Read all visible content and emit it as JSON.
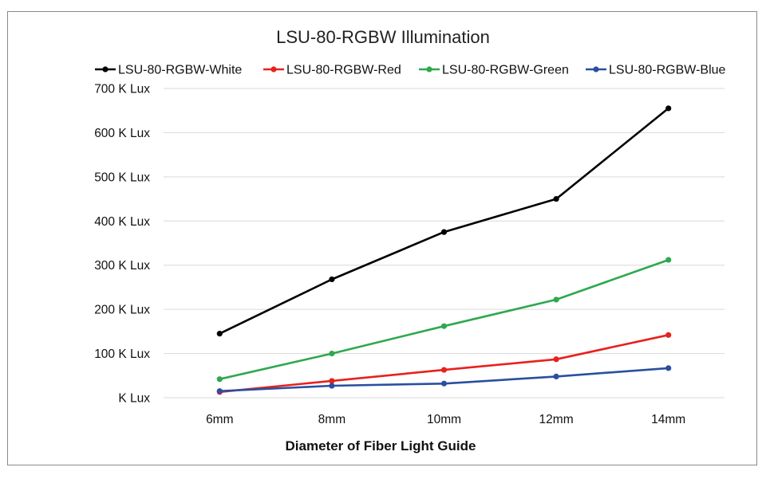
{
  "chart_data": {
    "type": "line",
    "title": "LSU-80-RGBW Illumination",
    "xlabel": "Diameter of Fiber Light Guide",
    "ylabel": "",
    "categories": [
      "6mm",
      "8mm",
      "10mm",
      "12mm",
      "14mm"
    ],
    "ylim": [
      0,
      700
    ],
    "yticks": [
      0,
      100,
      200,
      300,
      400,
      500,
      600,
      700
    ],
    "ytick_labels": [
      "K Lux",
      "100 K Lux",
      "200 K Lux",
      "300 K Lux",
      "400 K Lux",
      "500 K Lux",
      "600 K Lux",
      "700 K Lux"
    ],
    "grid": true,
    "legend_position": "top",
    "series": [
      {
        "name": "LSU-80-RGBW-White",
        "color": "#000000",
        "values": [
          145,
          268,
          375,
          450,
          655
        ]
      },
      {
        "name": "LSU-80-RGBW-Red",
        "color": "#e8211d",
        "values": [
          13,
          38,
          63,
          87,
          142
        ]
      },
      {
        "name": "LSU-80-RGBW-Green",
        "color": "#2fa84f",
        "values": [
          42,
          100,
          162,
          222,
          312
        ]
      },
      {
        "name": "LSU-80-RGBW-Blue",
        "color": "#2a4fa0",
        "values": [
          15,
          27,
          32,
          48,
          67
        ]
      }
    ]
  }
}
